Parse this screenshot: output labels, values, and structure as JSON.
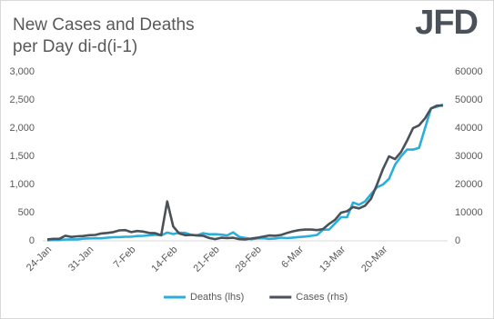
{
  "chart_data": {
    "type": "line",
    "title": [
      "New Cases and Deaths",
      "per Day di-d(i-1)"
    ],
    "logo": "JFD",
    "categories": [
      "24-Jan",
      null,
      null,
      null,
      null,
      null,
      null,
      "31-Jan",
      null,
      null,
      null,
      null,
      null,
      null,
      "7-Feb",
      null,
      null,
      null,
      null,
      null,
      null,
      "14-Feb",
      null,
      null,
      null,
      null,
      null,
      null,
      "21-Feb",
      null,
      null,
      null,
      null,
      null,
      null,
      "28-Feb",
      null,
      null,
      null,
      null,
      null,
      null,
      "6-Mar",
      null,
      null,
      null,
      null,
      null,
      null,
      "13-Mar",
      null,
      null,
      null,
      null,
      null,
      null,
      "20-Mar",
      null,
      null,
      null,
      null,
      null,
      null,
      null,
      null,
      null,
      null
    ],
    "series": [
      {
        "name": "Deaths (lhs)",
        "color": "#2bafd8",
        "axis": "y",
        "values": [
          8,
          16,
          15,
          24,
          26,
          26,
          38,
          43,
          46,
          45,
          57,
          64,
          66,
          73,
          73,
          86,
          89,
          97,
          108,
          97,
          146,
          121,
          143,
          142,
          105,
          98,
          136,
          116,
          118,
          109,
          97,
          150,
          71,
          52,
          29,
          44,
          47,
          35,
          42,
          56,
          49,
          58,
          67,
          76,
          89,
          105,
          198,
          200,
          310,
          420,
          420,
          680,
          640,
          700,
          830,
          950,
          1000,
          1100,
          1350,
          1500,
          1620,
          1620,
          1650,
          2000,
          2350,
          2380,
          2420
        ]
      },
      {
        "name": "Cases (rhs)",
        "color": "#4a5158",
        "axis": "y2",
        "values": [
          500,
          700,
          700,
          1800,
          1400,
          1600,
          1700,
          2000,
          2100,
          2600,
          2800,
          3100,
          3700,
          3800,
          3100,
          3500,
          3300,
          2800,
          2700,
          2000,
          14000,
          5100,
          2600,
          2000,
          2100,
          1900,
          1800,
          1000,
          600,
          1100,
          1000,
          1100,
          600,
          500,
          800,
          1100,
          1500,
          1900,
          1800,
          2100,
          2800,
          3400,
          3800,
          4000,
          4000,
          3800,
          4200,
          6000,
          7500,
          10000,
          10500,
          12000,
          11500,
          12500,
          15000,
          20000,
          25500,
          30000,
          29000,
          31500,
          35500,
          40000,
          41000,
          43500,
          47000,
          48000,
          48000
        ]
      }
    ],
    "ylim": [
      0,
      3000
    ],
    "yticks": [
      0,
      500,
      {
        "value": 1000,
        "label": "1,000"
      },
      {
        "value": 1500,
        "label": "1,500"
      },
      {
        "value": 2000,
        "label": "2,000"
      },
      {
        "value": 2500,
        "label": "2,500"
      },
      {
        "value": 3000,
        "label": "3,000"
      }
    ],
    "y2lim": [
      0,
      60000
    ],
    "y2ticks": [
      0,
      10000,
      20000,
      30000,
      40000,
      50000,
      60000
    ],
    "grid": false,
    "legend": "bottom"
  }
}
